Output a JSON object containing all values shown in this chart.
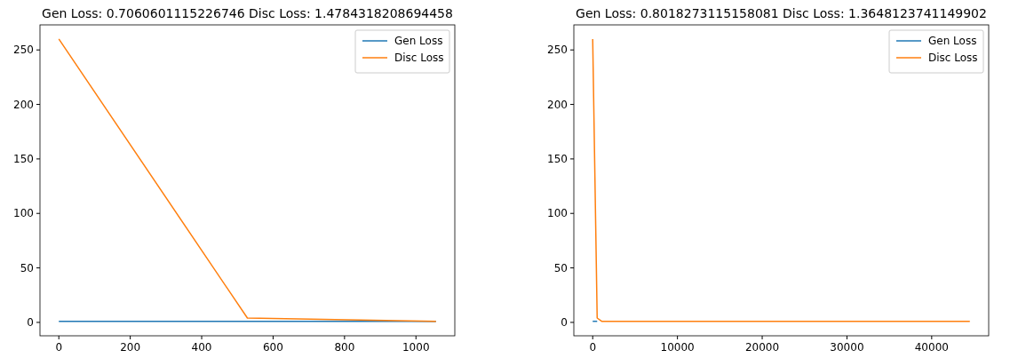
{
  "chart_data": [
    {
      "type": "line",
      "title": "Gen Loss: 0.7060601115226746 Disc Loss: 1.4784318208694458",
      "x": [
        0,
        528,
        1056
      ],
      "xlim": [
        -52.8,
        1108.8
      ],
      "ylim": [
        -12.3,
        273
      ],
      "xticks": [
        0,
        200,
        400,
        600,
        800,
        1000
      ],
      "yticks": [
        0,
        50,
        100,
        150,
        200,
        250
      ],
      "legend": "top right",
      "grid": false,
      "series": [
        {
          "name": "Gen Loss",
          "color": "#1f77b4",
          "values": [
            1,
            1,
            1
          ]
        },
        {
          "name": "Disc Loss",
          "color": "#ff7f0e",
          "values": [
            260,
            4,
            1
          ]
        }
      ]
    },
    {
      "type": "line",
      "title": "Gen Loss: 0.8018273115158081 Disc Loss: 1.3648123741149902",
      "x": [
        0,
        528,
        1056,
        2112,
        10000,
        20000,
        30000,
        40000,
        44500
      ],
      "xlim": [
        -2225,
        46725
      ],
      "ylim": [
        -12.3,
        273
      ],
      "xticks": [
        0,
        10000,
        20000,
        30000,
        40000
      ],
      "yticks": [
        0,
        50,
        100,
        150,
        200,
        250
      ],
      "legend": "top right",
      "grid": false,
      "series": [
        {
          "name": "Gen Loss",
          "color": "#1f77b4",
          "values": [
            1,
            1,
            null,
            null,
            null,
            null,
            null,
            null,
            null
          ]
        },
        {
          "name": "Disc Loss",
          "color": "#ff7f0e",
          "values": [
            260,
            4,
            1,
            1,
            1,
            1,
            1,
            1,
            1
          ]
        }
      ]
    }
  ]
}
